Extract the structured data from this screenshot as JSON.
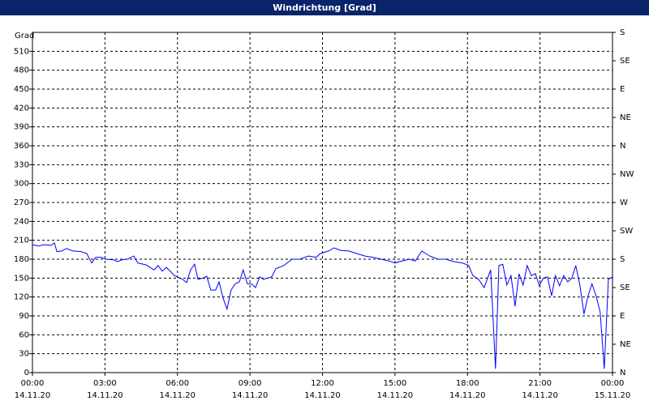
{
  "chart_data": {
    "type": "line",
    "title": "Windrichtung [Grad]",
    "y_label": "Grad",
    "x": [
      0,
      0.23,
      0.5,
      0.77,
      0.91,
      1.01,
      1.21,
      1.41,
      1.68,
      2.01,
      2.25,
      2.45,
      2.62,
      2.85,
      3.02,
      3.36,
      3.52,
      3.69,
      3.93,
      4.19,
      4.36,
      4.7,
      5.03,
      5.2,
      5.37,
      5.54,
      5.7,
      5.87,
      6.21,
      6.38,
      6.54,
      6.71,
      6.85,
      7.05,
      7.21,
      7.38,
      7.58,
      7.72,
      7.89,
      8.05,
      8.22,
      8.39,
      8.56,
      8.72,
      8.89,
      9.06,
      9.23,
      9.4,
      9.56,
      9.73,
      9.9,
      10.07,
      10.4,
      10.74,
      11.07,
      11.41,
      11.74,
      11.91,
      12.25,
      12.48,
      12.75,
      13.09,
      13.42,
      13.76,
      14.09,
      14.43,
      14.77,
      15.0,
      15.27,
      15.6,
      15.84,
      16.11,
      16.44,
      16.78,
      17.11,
      17.45,
      17.79,
      18.05,
      18.22,
      18.46,
      18.69,
      18.96,
      19.16,
      19.3,
      19.46,
      19.63,
      19.8,
      19.97,
      20.13,
      20.3,
      20.47,
      20.64,
      20.81,
      20.97,
      21.14,
      21.31,
      21.48,
      21.64,
      21.81,
      21.98,
      22.15,
      22.32,
      22.48,
      22.65,
      22.82,
      22.99,
      23.15,
      23.32,
      23.49,
      23.66,
      23.83,
      24.0
    ],
    "series": [
      {
        "color": "#0000ff",
        "values": [
          203,
          201,
          203,
          202,
          206,
          192,
          193,
          197,
          193,
          192,
          189,
          174,
          183,
          183,
          180,
          179,
          176,
          179,
          180,
          185,
          174,
          171,
          163,
          170,
          161,
          167,
          161,
          154,
          148,
          143,
          163,
          172,
          148,
          150,
          153,
          131,
          131,
          144,
          118,
          101,
          131,
          141,
          144,
          163,
          141,
          141,
          135,
          152,
          148,
          150,
          152,
          165,
          170,
          180,
          180,
          185,
          183,
          189,
          193,
          198,
          194,
          193,
          189,
          185,
          183,
          180,
          177,
          174,
          177,
          180,
          177,
          193,
          185,
          180,
          180,
          176,
          174,
          170,
          154,
          148,
          135,
          163,
          6,
          170,
          172,
          139,
          154,
          105,
          157,
          139,
          170,
          154,
          157,
          138,
          150,
          152,
          122,
          154,
          138,
          154,
          144,
          150,
          170,
          139,
          93,
          122,
          141,
          122,
          96,
          6,
          148,
          152
        ]
      }
    ],
    "xlim": [
      0,
      24
    ],
    "xticks": [
      {
        "value": 0,
        "label": "00:00"
      },
      {
        "value": 3,
        "label": "03:00"
      },
      {
        "value": 6,
        "label": "06:00"
      },
      {
        "value": 9,
        "label": "09:00"
      },
      {
        "value": 12,
        "label": "12:00"
      },
      {
        "value": 15,
        "label": "15:00"
      },
      {
        "value": 18,
        "label": "18:00"
      },
      {
        "value": 21,
        "label": "21:00"
      },
      {
        "value": 24,
        "label": "00:00"
      }
    ],
    "xtick_dates": [
      "14.11.20",
      "14.11.20",
      "14.11.20",
      "14.11.20",
      "14.11.20",
      "14.11.20",
      "14.11.20",
      "14.11.20",
      "15.11.20"
    ],
    "ylim": [
      0,
      540
    ],
    "yticks": [
      0,
      30,
      60,
      90,
      120,
      150,
      180,
      210,
      240,
      270,
      300,
      330,
      360,
      390,
      420,
      450,
      480,
      510
    ],
    "y2lim": [
      0,
      540
    ],
    "y2ticks": [
      {
        "value": 0,
        "label": "N"
      },
      {
        "value": 45,
        "label": "NE"
      },
      {
        "value": 90,
        "label": "E"
      },
      {
        "value": 135,
        "label": "SE"
      },
      {
        "value": 180,
        "label": "S"
      },
      {
        "value": 225,
        "label": "SW"
      },
      {
        "value": 270,
        "label": "W"
      },
      {
        "value": 315,
        "label": "NW"
      },
      {
        "value": 360,
        "label": "N"
      },
      {
        "value": 405,
        "label": "NE"
      },
      {
        "value": 450,
        "label": "E"
      },
      {
        "value": 495,
        "label": "SE"
      },
      {
        "value": 540,
        "label": "S"
      }
    ],
    "grid": true
  }
}
